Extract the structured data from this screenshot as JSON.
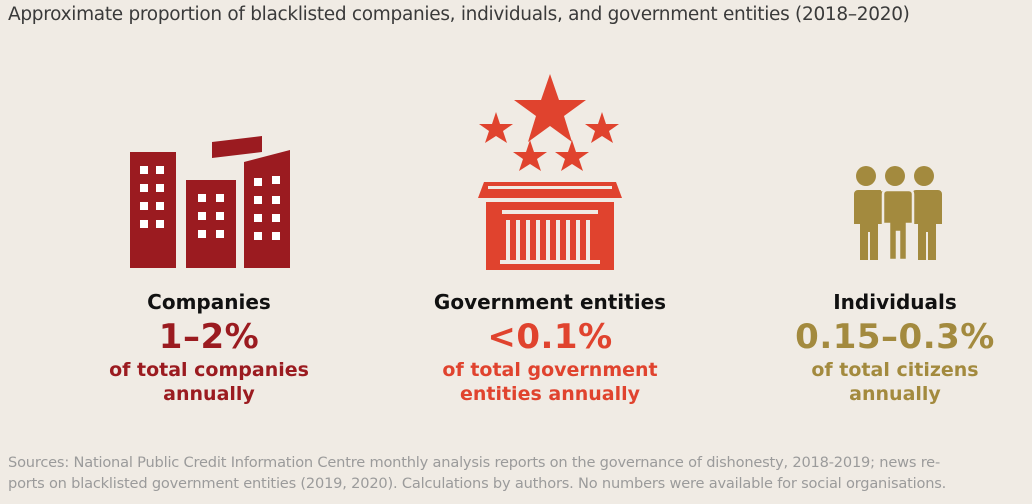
{
  "title": "Approximate proportion of blacklisted companies, individuals, and government entities (2018–2020)",
  "columns": [
    {
      "name": "Companies",
      "value": "1–2%",
      "desc_line1": "of total companies",
      "desc_line2": "annually",
      "color": "#9b1b20",
      "icon": "buildings-icon"
    },
    {
      "name": "Government entities",
      "value": "<0.1%",
      "desc_line1": "of total government",
      "desc_line2": "entities annually",
      "color": "#e0432e",
      "icon": "government-building-stars-icon"
    },
    {
      "name": "Individuals",
      "value": "0.15–0.3%",
      "desc_line1": "of total citizens",
      "desc_line2": "annually",
      "color": "#a38a3e",
      "icon": "people-group-icon"
    }
  ],
  "sources_line1": "Sources: National Public Credit Information Centre monthly analysis reports on the governance of dishonesty, 2018-2019; news re-",
  "sources_line2": "ports on blacklisted government entities (2019, 2020). Calculations by authors. No numbers were available for social organisations."
}
